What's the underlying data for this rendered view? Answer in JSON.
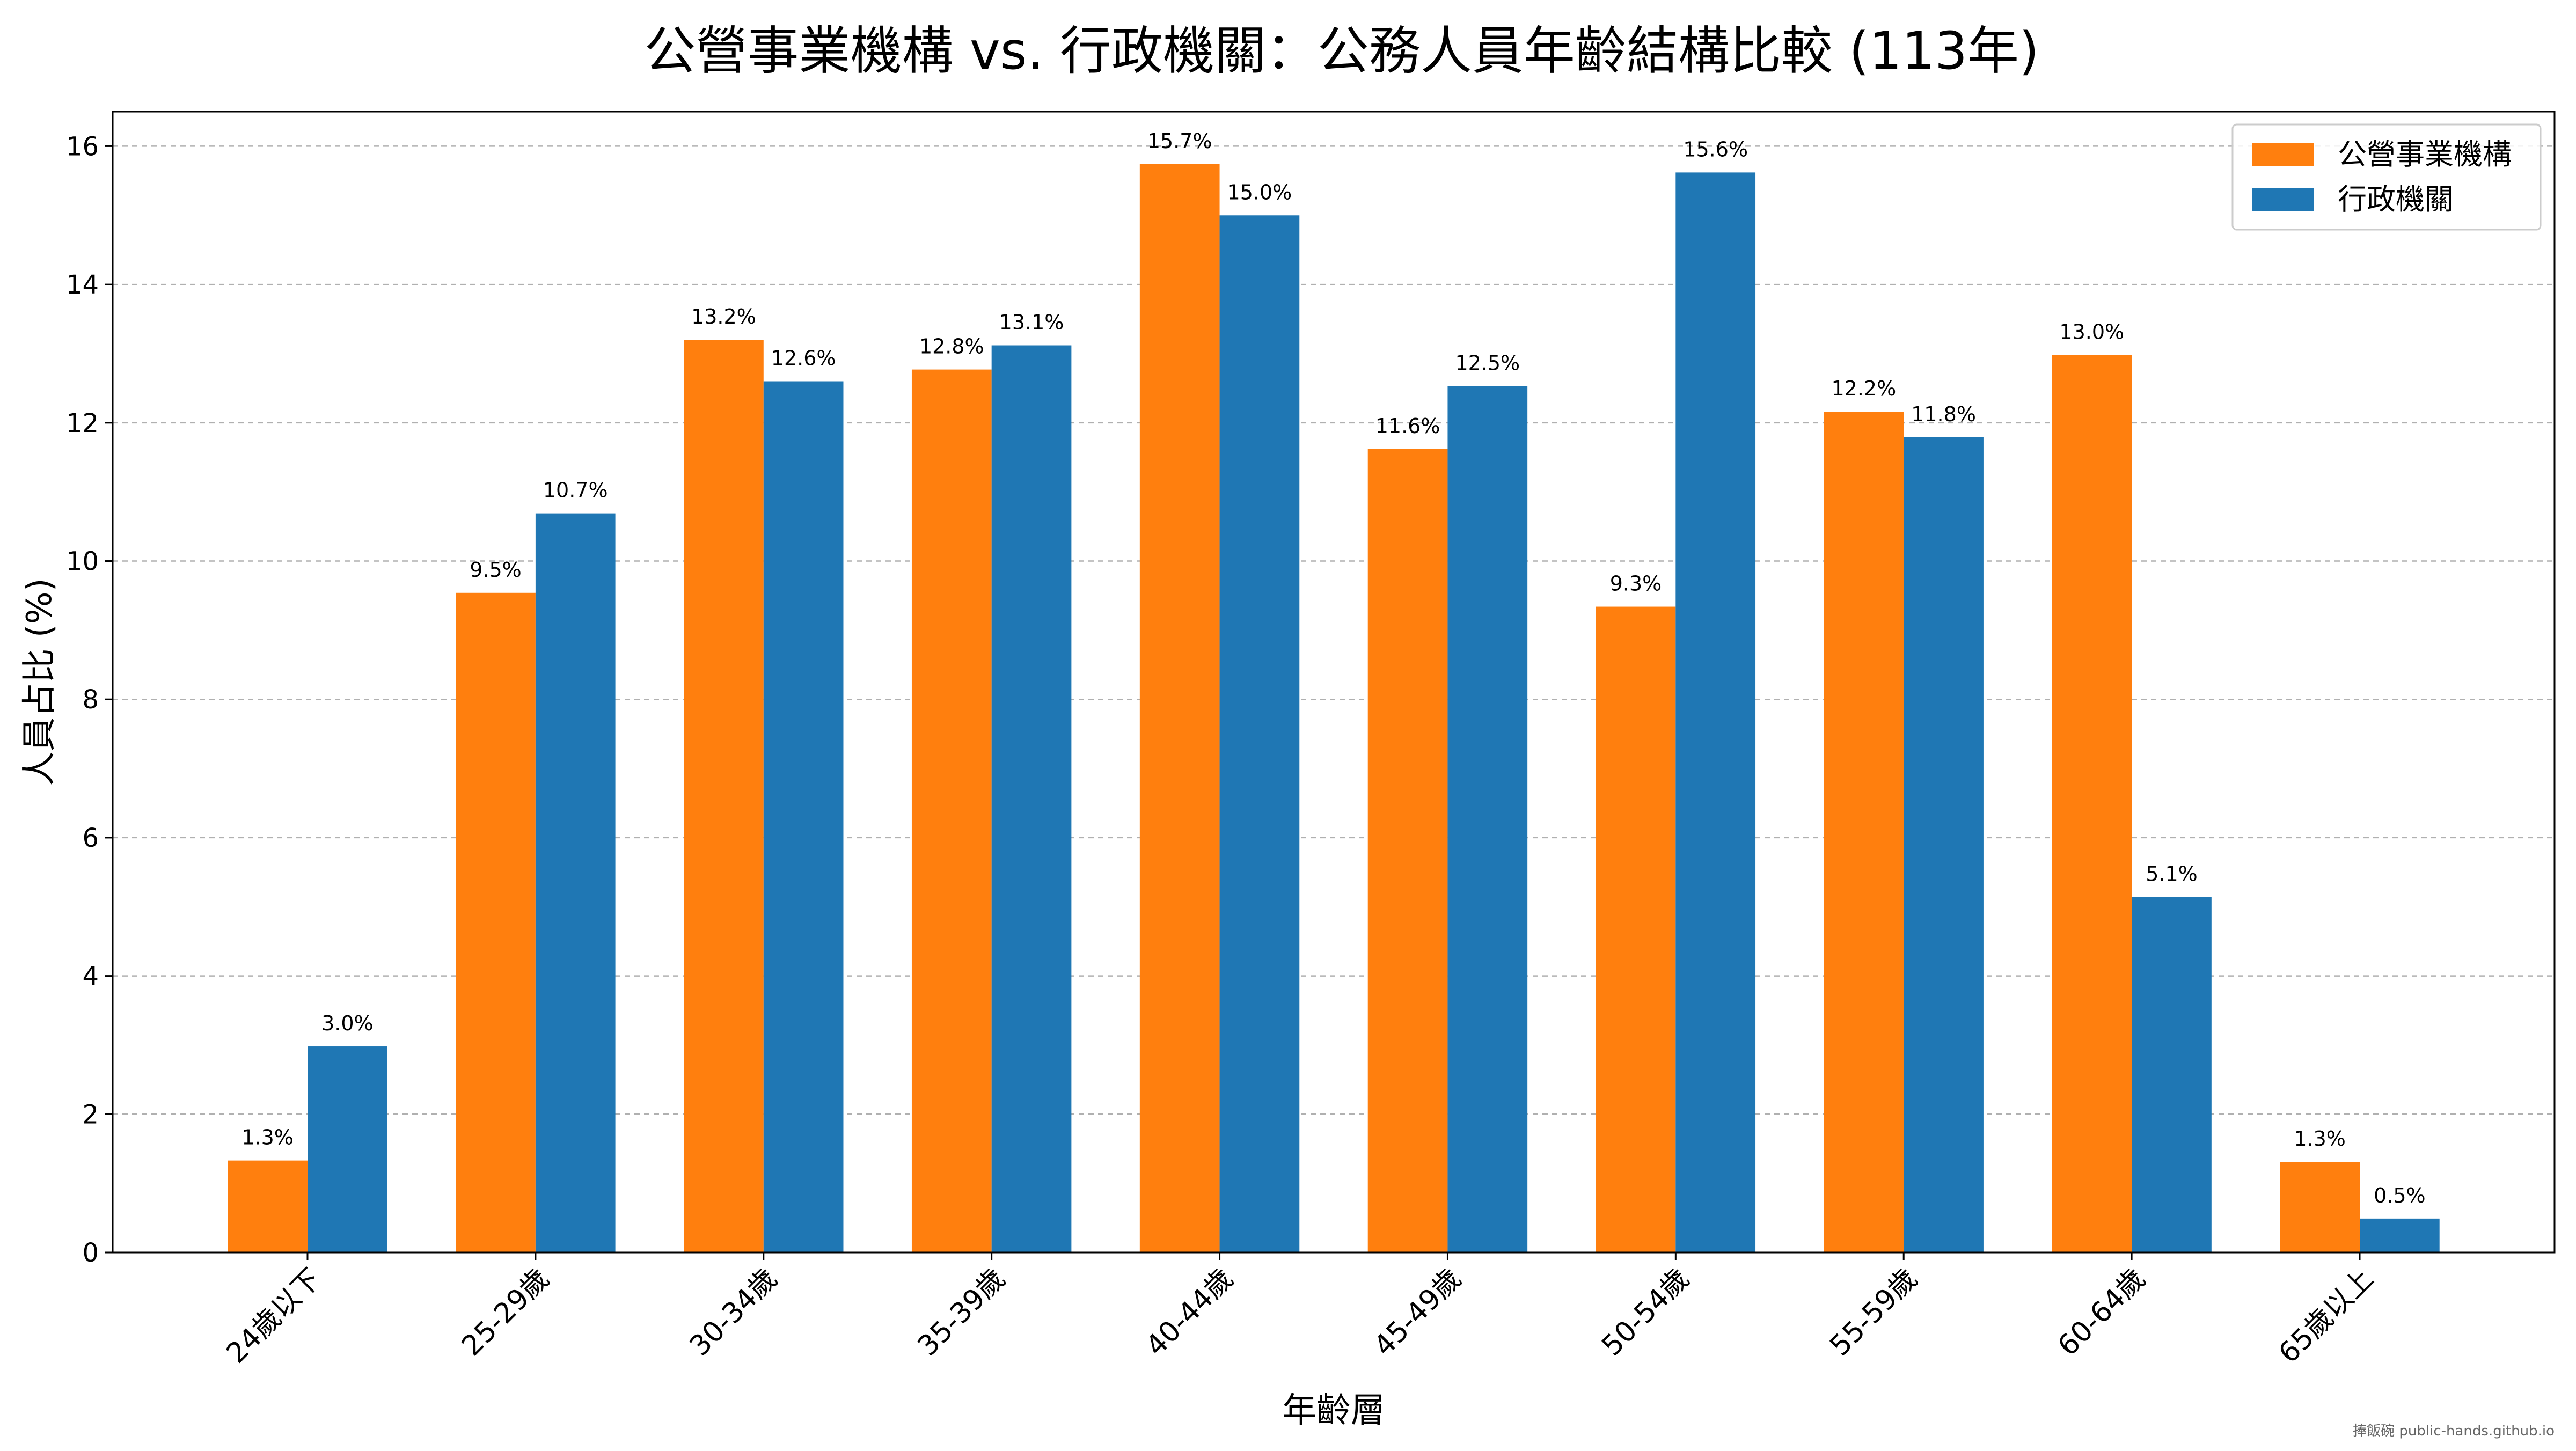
{
  "chart_data": {
    "type": "bar",
    "title": "公營事業機構 vs. 行政機關：公務人員年齡結構比較 (113年)",
    "xlabel": "年齡層",
    "ylabel": "人員占比 (%)",
    "ylim": [
      0,
      16.5
    ],
    "yticks": [
      0,
      2,
      4,
      6,
      8,
      10,
      12,
      14,
      16
    ],
    "grid": "y-dashed",
    "legend_position": "top-right",
    "categories": [
      "24歲以下",
      "25-29歲",
      "30-34歲",
      "35-39歲",
      "40-44歲",
      "45-49歲",
      "50-54歲",
      "55-59歲",
      "60-64歲",
      "65歲以上"
    ],
    "series": [
      {
        "name": "公營事業機構",
        "color": "#ff7f0e",
        "values": [
          1.33,
          9.54,
          13.2,
          12.77,
          15.74,
          11.62,
          9.34,
          12.16,
          12.98,
          1.31
        ],
        "labels": [
          "1.3%",
          "9.5%",
          "13.2%",
          "12.8%",
          "15.7%",
          "11.6%",
          "9.3%",
          "12.2%",
          "13.0%",
          "1.3%"
        ]
      },
      {
        "name": "行政機關",
        "color": "#1f77b4",
        "values": [
          2.98,
          10.69,
          12.6,
          13.12,
          15.0,
          12.53,
          15.62,
          11.79,
          5.14,
          0.49
        ],
        "labels": [
          "3.0%",
          "10.7%",
          "12.6%",
          "13.1%",
          "15.0%",
          "12.5%",
          "15.6%",
          "11.8%",
          "5.1%",
          "0.5%"
        ]
      }
    ]
  },
  "footer": {
    "credit": "捧飯碗 public-hands.github.io"
  }
}
